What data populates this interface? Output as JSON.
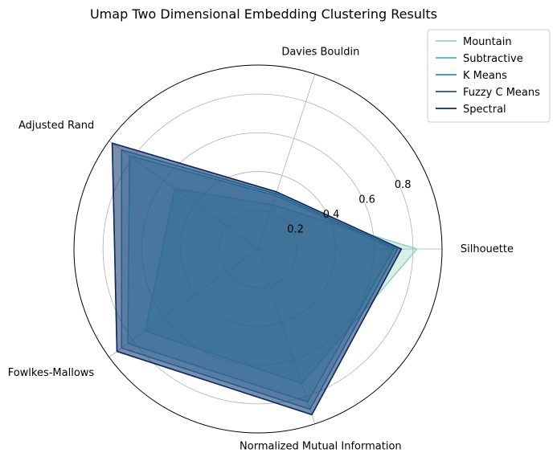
{
  "chart_data": {
    "type": "radar",
    "title": "Umap Two Dimensional Embedding Clustering Results",
    "axes": [
      "Silhouette",
      "Davies Bouldin",
      "Adjusted Rand",
      "Fowlkes-Mallows",
      "Normalized Mutual Information"
    ],
    "r_ticks": [
      0.2,
      0.4,
      0.6,
      0.8
    ],
    "r_tick_labels": [
      "0.2",
      "0.4",
      "0.6",
      "0.8"
    ],
    "rlim": [
      0,
      0.95
    ],
    "grid": true,
    "legend_position": "top-right",
    "series": [
      {
        "name": "Mountain",
        "color": "#8fd3c0",
        "values": [
          0.82,
          0.24,
          0.53,
          0.72,
          0.73
        ]
      },
      {
        "name": "Subtractive",
        "color": "#41c0c6",
        "values": [
          0.7,
          0.29,
          0.82,
          0.83,
          0.83
        ]
      },
      {
        "name": "K Means",
        "color": "#2b8cb3",
        "values": [
          0.72,
          0.3,
          0.87,
          0.87,
          0.87
        ]
      },
      {
        "name": "Fuzzy C Means",
        "color": "#2a4f9b",
        "values": [
          0.74,
          0.31,
          0.93,
          0.9,
          0.9
        ]
      },
      {
        "name": "Spectral",
        "color": "#0b2a5b",
        "values": [
          0.74,
          0.31,
          0.93,
          0.9,
          0.9
        ]
      }
    ]
  }
}
